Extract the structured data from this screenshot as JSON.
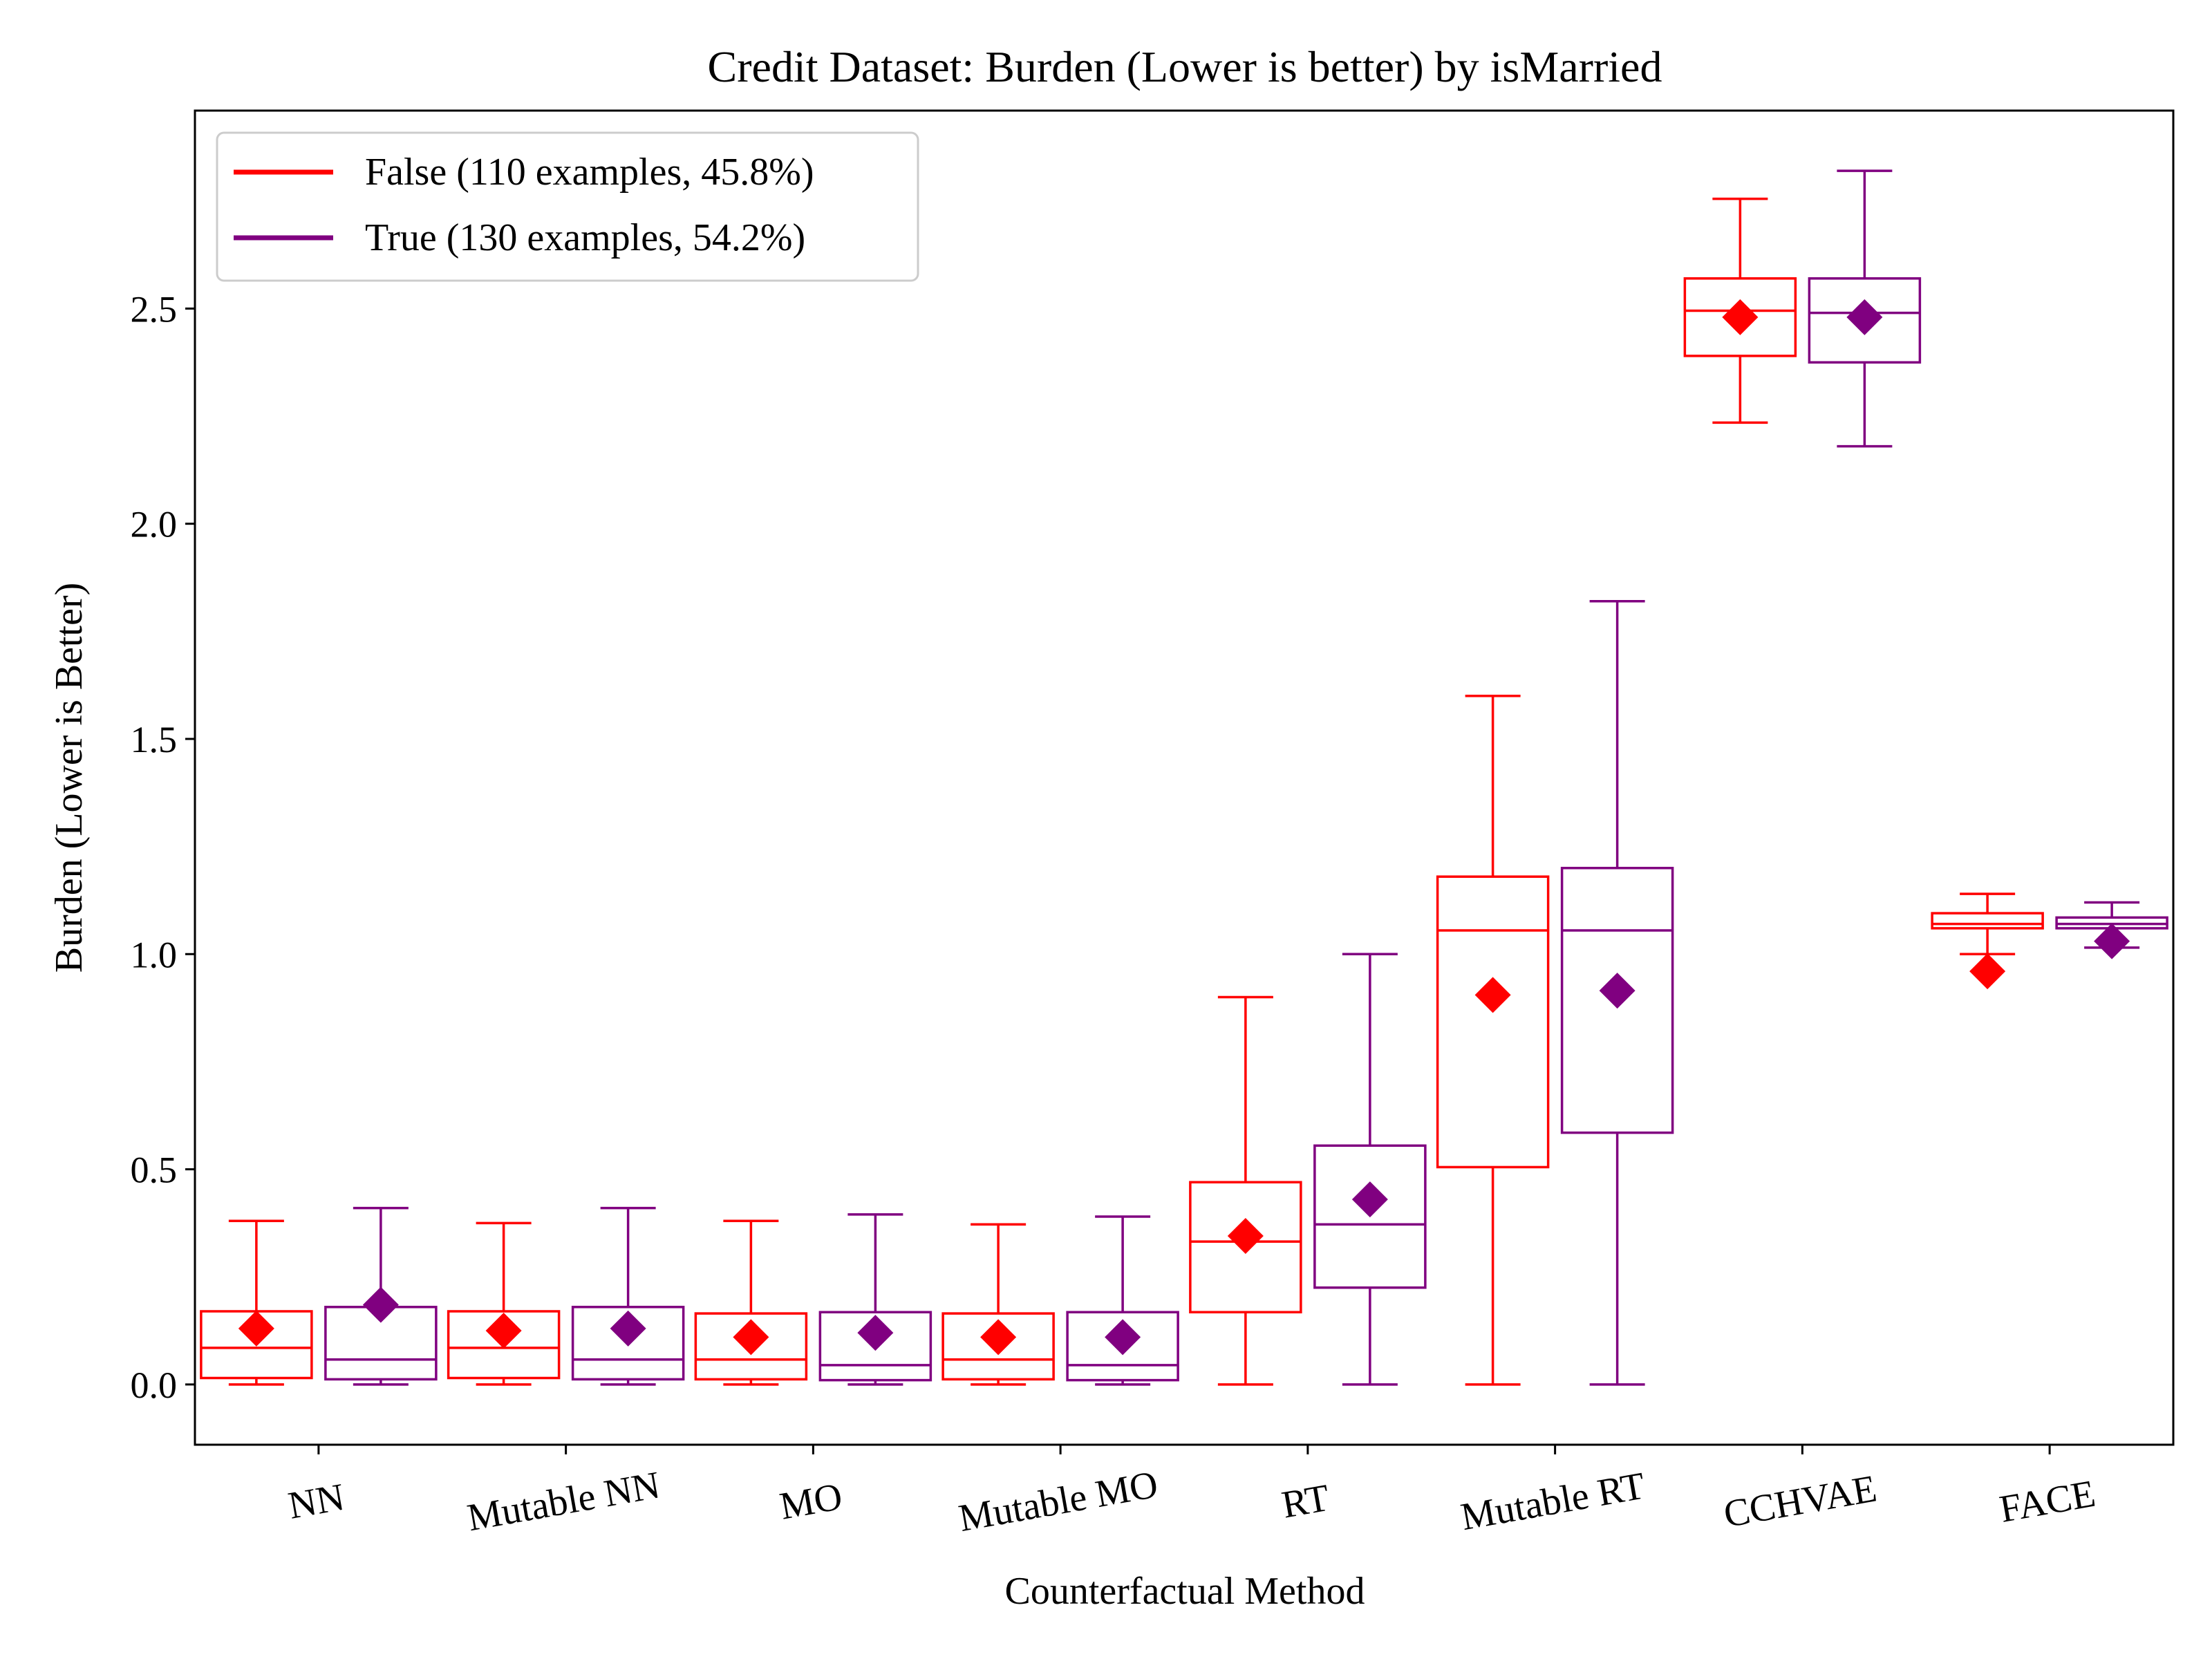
{
  "chart_data": {
    "type": "box",
    "title": "Credit Dataset: Burden (Lower is better) by isMarried",
    "xlabel": "Counterfactual Method",
    "ylabel": "Burden (Lower is Better)",
    "ylim": [
      -0.14,
      2.96
    ],
    "yticks": [
      "0.0",
      "0.5",
      "1.0",
      "1.5",
      "2.0",
      "2.5"
    ],
    "ytick_values": [
      0.0,
      0.5,
      1.0,
      1.5,
      2.0,
      2.5
    ],
    "grid": false,
    "legend_position": "upper-left",
    "categories": [
      "NN",
      "Mutable NN",
      "MO",
      "Mutable MO",
      "RT",
      "Mutable RT",
      "CCHVAE",
      "FACE"
    ],
    "series": [
      {
        "name": "False (110 examples, 45.8%)",
        "color": "#ff0000",
        "boxes": [
          {
            "whislo": 0.0,
            "q1": 0.015,
            "med": 0.085,
            "q3": 0.17,
            "whishi": 0.38,
            "mean": 0.13
          },
          {
            "whislo": 0.0,
            "q1": 0.015,
            "med": 0.085,
            "q3": 0.17,
            "whishi": 0.375,
            "mean": 0.125
          },
          {
            "whislo": 0.0,
            "q1": 0.012,
            "med": 0.058,
            "q3": 0.165,
            "whishi": 0.38,
            "mean": 0.11
          },
          {
            "whislo": 0.0,
            "q1": 0.012,
            "med": 0.058,
            "q3": 0.165,
            "whishi": 0.372,
            "mean": 0.11
          },
          {
            "whislo": 0.0,
            "q1": 0.168,
            "med": 0.332,
            "q3": 0.47,
            "whishi": 0.9,
            "mean": 0.345
          },
          {
            "whislo": 0.0,
            "q1": 0.505,
            "med": 1.055,
            "q3": 1.18,
            "whishi": 1.6,
            "mean": 0.905
          },
          {
            "whislo": 2.235,
            "q1": 2.39,
            "med": 2.495,
            "q3": 2.57,
            "whishi": 2.755,
            "mean": 2.48
          },
          {
            "whislo": 1.0,
            "q1": 1.06,
            "med": 1.07,
            "q3": 1.095,
            "whishi": 1.14,
            "mean": 0.96
          }
        ]
      },
      {
        "name": "True (130 examples, 54.2%)",
        "color": "#800080",
        "boxes": [
          {
            "whislo": 0.0,
            "q1": 0.012,
            "med": 0.058,
            "q3": 0.18,
            "whishi": 0.41,
            "mean": 0.185
          },
          {
            "whislo": 0.0,
            "q1": 0.012,
            "med": 0.058,
            "q3": 0.18,
            "whishi": 0.41,
            "mean": 0.13
          },
          {
            "whislo": 0.0,
            "q1": 0.01,
            "med": 0.045,
            "q3": 0.168,
            "whishi": 0.395,
            "mean": 0.12
          },
          {
            "whislo": 0.0,
            "q1": 0.01,
            "med": 0.045,
            "q3": 0.168,
            "whishi": 0.39,
            "mean": 0.11
          },
          {
            "whislo": 0.0,
            "q1": 0.225,
            "med": 0.372,
            "q3": 0.555,
            "whishi": 1.0,
            "mean": 0.43
          },
          {
            "whislo": 0.0,
            "q1": 0.585,
            "med": 1.055,
            "q3": 1.2,
            "whishi": 1.82,
            "mean": 0.915
          },
          {
            "whislo": 2.18,
            "q1": 2.375,
            "med": 2.49,
            "q3": 2.57,
            "whishi": 2.82,
            "mean": 2.48
          },
          {
            "whislo": 1.015,
            "q1": 1.06,
            "med": 1.07,
            "q3": 1.085,
            "whishi": 1.12,
            "mean": 1.03
          }
        ]
      }
    ]
  }
}
